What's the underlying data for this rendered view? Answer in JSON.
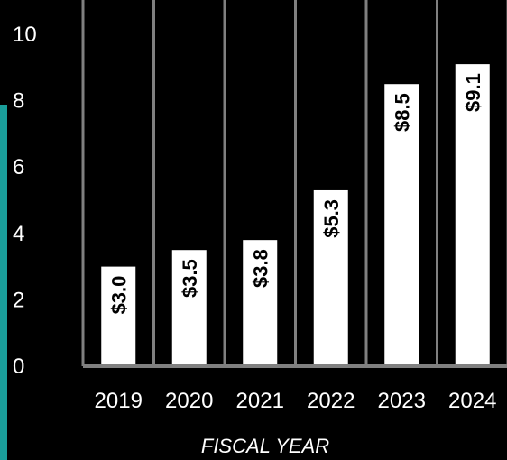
{
  "chart_data": {
    "type": "bar",
    "categories": [
      "2019",
      "2020",
      "2021",
      "2022",
      "2023",
      "2024"
    ],
    "values": [
      3.0,
      3.5,
      3.8,
      5.3,
      8.5,
      9.1
    ],
    "data_labels": [
      "$3.0",
      "$3.5",
      "$3.8",
      "$5.3",
      "$8.5",
      "$9.1"
    ],
    "title": "",
    "xlabel": "FISCAL YEAR",
    "ylabel": "",
    "ylim": [
      0,
      10
    ],
    "yticks": [
      "0",
      "2",
      "4",
      "6",
      "8",
      "10"
    ],
    "grid": "vertical separators between categories",
    "legend": "none"
  },
  "colors": {
    "background": "#000000",
    "bars": "#ffffff",
    "bar_label_text": "#000000",
    "axis_text": "#ffffff",
    "separator_lines": "#808080",
    "accent": "#1a9e9a"
  }
}
